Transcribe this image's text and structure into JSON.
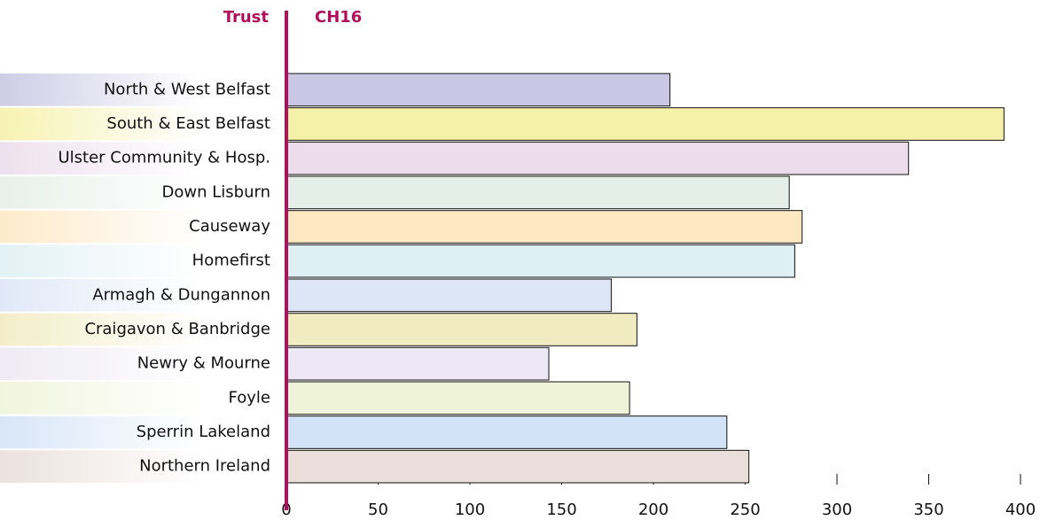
{
  "chart_data": {
    "type": "hbar",
    "category_header": "Trust",
    "series_header": "CH16",
    "categories": [
      "North & West Belfast",
      "South & East Belfast",
      "Ulster Community & Hosp.",
      "Down Lisburn",
      "Causeway",
      "Homefirst",
      "Armagh & Dungannon",
      "Craigavon & Banbridge",
      "Newry & Mourne",
      "Foyle",
      "Sperrin Lakeland",
      "Northern Ireland"
    ],
    "values": [
      209,
      391,
      339,
      274,
      281,
      277,
      177,
      191,
      143,
      187,
      240,
      252
    ],
    "colors": [
      "#c9c7e3",
      "#f6f1a9",
      "#ecdded",
      "#e5efe9",
      "#fde8c3",
      "#dff0f5",
      "#dde6f7",
      "#f1ebc1",
      "#ece8f5",
      "#eff4d9",
      "#d3e3f7",
      "#e9ded9"
    ],
    "accent_color": "#b0105a",
    "xlim": [
      0,
      400
    ],
    "xticks": [
      0,
      50,
      100,
      150,
      200,
      250,
      300,
      350,
      400
    ]
  }
}
